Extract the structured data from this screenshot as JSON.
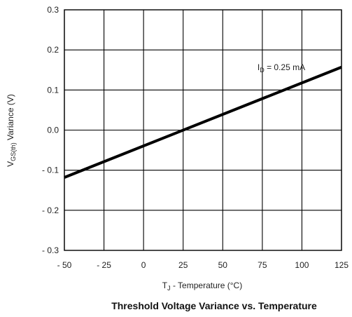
{
  "chart_data": {
    "type": "line",
    "title": "Threshold Voltage Variance vs. Temperature",
    "xlabel": {
      "main": "T",
      "sub": "J",
      "rest": " - Temperature (°C)"
    },
    "ylabel": {
      "main": "V",
      "sub": "GS(th)",
      "rest": " Variance (V)"
    },
    "xlim": [
      -50,
      125
    ],
    "ylim": [
      -0.3,
      0.3
    ],
    "xticks": [
      -50,
      -25,
      0,
      25,
      50,
      75,
      100,
      125
    ],
    "xtick_labels": [
      "- 50",
      "- 25",
      "0",
      "25",
      "50",
      "75",
      "100",
      "125"
    ],
    "yticks": [
      0.3,
      0.2,
      0.1,
      0.0,
      -0.1,
      -0.2,
      -0.3
    ],
    "ytick_labels": [
      "0.3",
      "0.2",
      "0.1",
      "0.0",
      "- 0.1",
      "- 0.2",
      "- 0.3"
    ],
    "grid": true,
    "series": [
      {
        "x": [
          -50,
          125
        ],
        "y": [
          -0.118,
          0.157
        ],
        "color": "#000000"
      }
    ],
    "annotations": [
      {
        "main": "I",
        "sub": "D",
        "rest": " = 0.25 mA",
        "x": 87,
        "y": 0.15
      }
    ]
  }
}
